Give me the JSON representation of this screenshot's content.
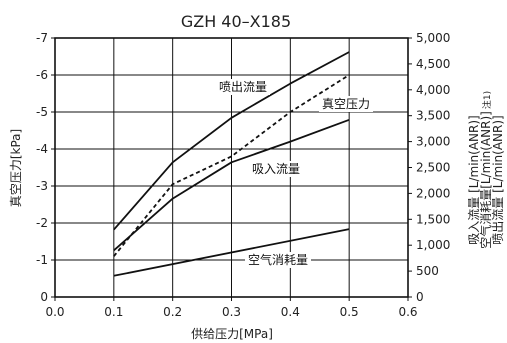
{
  "chart_data": {
    "type": "line",
    "title": "GZH 40–X185",
    "xlabel": "供给压力[MPa]",
    "ylabel_left": "真空压力[kPa]",
    "ylabel_right": [
      "吸入流量 [L/min(ANR)]",
      "空气消耗量[L/min(ANR)]",
      "喷出流量 [L/min(ANR)]"
    ],
    "ylabel_right_note": "注1)",
    "x_ticks": [
      "0.0",
      "0.1",
      "0.2",
      "0.3",
      "0.4",
      "0.5",
      "0.6"
    ],
    "y_left_ticks": [
      "-7",
      "-6",
      "-5",
      "-4",
      "-3",
      "-2",
      "-1",
      "0"
    ],
    "y_right_ticks": [
      "5,000",
      "4,500",
      "4,000",
      "3,500",
      "3,000",
      "2,500",
      "2,000",
      "1,500",
      "1,000",
      "500",
      "0"
    ],
    "xlim": [
      0,
      0.6
    ],
    "ylim_left": [
      0,
      -7
    ],
    "ylim_right": [
      0,
      5000
    ],
    "grid": true,
    "series": [
      {
        "name": "喷出流量",
        "axis": "right",
        "style": "solid",
        "x": [
          0.1,
          0.2,
          0.3,
          0.4,
          0.5
        ],
        "y": [
          1300,
          2600,
          3460,
          4120,
          4730
        ]
      },
      {
        "name": "真空压力",
        "axis": "left",
        "style": "dashed",
        "x": [
          0.1,
          0.2,
          0.3,
          0.4,
          0.5
        ],
        "y": [
          -1.1,
          -3.05,
          -3.8,
          -5.0,
          -6.0
        ]
      },
      {
        "name": "吸入流量",
        "axis": "right",
        "style": "solid",
        "x": [
          0.1,
          0.2,
          0.3,
          0.4,
          0.5
        ],
        "y": [
          900,
          1900,
          2600,
          3000,
          3420
        ]
      },
      {
        "name": "空气消耗量",
        "axis": "right",
        "style": "solid",
        "x": [
          0.1,
          0.5
        ],
        "y": [
          410,
          1310
        ]
      }
    ]
  }
}
